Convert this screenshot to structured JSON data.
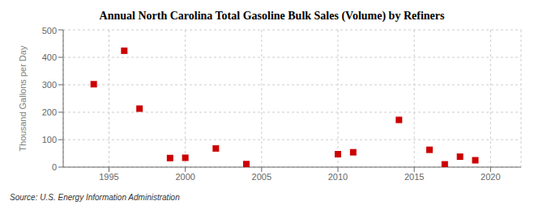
{
  "chart_data": {
    "type": "scatter",
    "title": "Annual North Carolina Total Gasoline Bulk Sales (Volume) by Refiners",
    "y_label": "Thousand Gallons per Day",
    "annotations": [
      "Source: U.S. Energy Information Administration"
    ],
    "x": [
      1994,
      1996,
      1997,
      1999,
      2000,
      2002,
      2004,
      2010,
      2011,
      2014,
      2016,
      2017,
      2018,
      2019
    ],
    "values": [
      302,
      424,
      213,
      33,
      34,
      68,
      11,
      47,
      54,
      172,
      63,
      10,
      38,
      25
    ],
    "color": "#cc0000",
    "marker": "square",
    "xlim": [
      1992,
      2022
    ],
    "xticks": [
      1995,
      2000,
      2005,
      2010,
      2015,
      2020
    ],
    "ylim": [
      0,
      500
    ],
    "yticks": [
      0,
      100,
      200,
      300,
      400,
      500
    ],
    "grid": true
  }
}
